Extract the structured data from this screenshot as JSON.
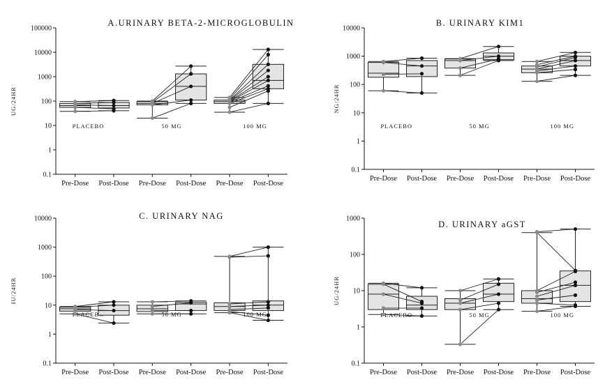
{
  "chart_data": [
    {
      "type": "box",
      "panel": "A",
      "title": "A.URINARY BETA-2-MICROGLOBULIN",
      "ylabel": "UG/24HR",
      "yscale": "log",
      "ylim": [
        0.1,
        100000
      ],
      "yticks": [
        "0.1",
        "1",
        "10",
        "100",
        "1000",
        "10000",
        "100000"
      ],
      "categories": [
        "Pre-Dose",
        "Post-Dose",
        "Pre-Dose",
        "Post-Dose",
        "Pre-Dose",
        "Post-Dose"
      ],
      "groups": [
        "PLACEBO",
        "50 MG",
        "100 MG"
      ],
      "boxes": [
        {
          "min": 38,
          "q1": 55,
          "median": 65,
          "q3": 80,
          "max": 95
        },
        {
          "min": 40,
          "q1": 52,
          "median": 65,
          "q3": 88,
          "max": 105
        },
        {
          "min": 20,
          "q1": 70,
          "median": 80,
          "q3": 95,
          "max": 100
        },
        {
          "min": 80,
          "q1": 110,
          "median": 400,
          "q3": 1300,
          "max": 2700
        },
        {
          "min": 35,
          "q1": 80,
          "median": 95,
          "q3": 110,
          "max": 140
        },
        {
          "min": 80,
          "q1": 320,
          "median": 700,
          "q3": 3200,
          "max": 13000
        }
      ],
      "pairs": [
        [
          [
            38,
            40
          ],
          [
            55,
            48
          ],
          [
            70,
            65
          ],
          [
            80,
            88
          ],
          [
            95,
            105
          ]
        ],
        [
          [
            20,
            80
          ],
          [
            70,
            110
          ],
          [
            80,
            400
          ],
          [
            90,
            1300
          ],
          [
            100,
            2700
          ]
        ],
        [
          [
            35,
            80
          ],
          [
            55,
            260
          ],
          [
            80,
            320
          ],
          [
            90,
            420
          ],
          [
            95,
            700
          ],
          [
            100,
            1000
          ],
          [
            105,
            1800
          ],
          [
            110,
            3200
          ],
          [
            120,
            8000
          ],
          [
            140,
            13000
          ]
        ]
      ]
    },
    {
      "type": "box",
      "panel": "B",
      "title": "B. URINARY KIM1",
      "ylabel": "NG/24HR",
      "yscale": "log",
      "ylim": [
        0.1,
        10000
      ],
      "yticks": [
        "0.1",
        "1",
        "10",
        "100",
        "1000",
        "10000"
      ],
      "categories": [
        "Pre-Dose",
        "Post-Dose",
        "Pre-Dose",
        "Post-Dose",
        "Pre-Dose",
        "Post-Dose"
      ],
      "groups": [
        "PLACEBO",
        "50 MG",
        "100 MG"
      ],
      "boxes": [
        {
          "min": 60,
          "q1": 180,
          "median": 250,
          "q3": 600,
          "max": 650
        },
        {
          "min": 50,
          "q1": 190,
          "median": 450,
          "q3": 700,
          "max": 850
        },
        {
          "min": 210,
          "q1": 380,
          "median": 700,
          "q3": 800,
          "max": 820
        },
        {
          "min": 700,
          "q1": 750,
          "median": 1000,
          "q3": 1300,
          "max": 2200
        },
        {
          "min": 130,
          "q1": 260,
          "median": 350,
          "q3": 450,
          "max": 650
        },
        {
          "min": 210,
          "q1": 450,
          "median": 700,
          "q3": 1000,
          "max": 1350
        }
      ],
      "pairs": [
        [
          [
            60,
            50
          ],
          [
            230,
            240
          ],
          [
            600,
            450
          ],
          [
            650,
            850
          ]
        ],
        [
          [
            210,
            700
          ],
          [
            380,
            800
          ],
          [
            700,
            1000
          ],
          [
            820,
            2200
          ]
        ],
        [
          [
            130,
            210
          ],
          [
            260,
            340
          ],
          [
            300,
            450
          ],
          [
            350,
            700
          ],
          [
            420,
            900
          ],
          [
            500,
            1000
          ],
          [
            650,
            1350
          ]
        ]
      ]
    },
    {
      "type": "box",
      "panel": "C",
      "title": "C. URINARY NAG",
      "ylabel": "IU/24HR",
      "yscale": "log",
      "ylim": [
        0.1,
        10000
      ],
      "yticks": [
        "0.1",
        "1",
        "10",
        "100",
        "1000",
        "10000"
      ],
      "categories": [
        "Pre-Dose",
        "Post-Dose",
        "Pre-Dose",
        "Post-Dose",
        "Pre-Dose",
        "Post-Dose"
      ],
      "groups": [
        "PLACEBO",
        "50 MG",
        "100 MG"
      ],
      "boxes": [
        {
          "min": 5,
          "q1": 6.2,
          "median": 7.5,
          "q3": 8.5,
          "max": 9
        },
        {
          "min": 2.4,
          "q1": 4.5,
          "median": 6.5,
          "q3": 10,
          "max": 13
        },
        {
          "min": 5,
          "q1": 6,
          "median": 7.5,
          "q3": 10,
          "max": 13
        },
        {
          "min": 5,
          "q1": 6.5,
          "median": 11,
          "q3": 12.5,
          "max": 14
        },
        {
          "min": 5.5,
          "q1": 6.5,
          "median": 9,
          "q3": 12,
          "max": 480
        },
        {
          "min": 3,
          "q1": 6.5,
          "median": 10,
          "q3": 14,
          "max": 1000
        }
      ],
      "pairs": [
        [
          [
            5,
            2.4
          ],
          [
            7,
            6.5
          ],
          [
            8.5,
            10
          ],
          [
            9,
            13
          ]
        ],
        [
          [
            5,
            5
          ],
          [
            6.5,
            6.5
          ],
          [
            9,
            12
          ],
          [
            13,
            14
          ]
        ],
        [
          [
            5.5,
            3
          ],
          [
            6,
            4.5
          ],
          [
            7,
            8
          ],
          [
            9,
            10
          ],
          [
            11,
            13
          ],
          [
            450,
            500
          ],
          [
            480,
            1000
          ]
        ]
      ]
    },
    {
      "type": "box",
      "panel": "D",
      "title": "D. URINARY aGST",
      "ylabel": "UG/24HR",
      "yscale": "log",
      "ylim": [
        0.1,
        1000
      ],
      "yticks": [
        "0.1",
        "1",
        "10",
        "100",
        "1000"
      ],
      "categories": [
        "Pre-Dose",
        "Post-Dose",
        "Pre-Dose",
        "Post-Dose",
        "Pre-Dose",
        "Post-Dose"
      ],
      "groups": [
        "PLACEBO",
        "50 MG",
        "100 MG"
      ],
      "boxes": [
        {
          "min": 2.2,
          "q1": 3,
          "median": 8,
          "q3": 15,
          "max": 16
        },
        {
          "min": 2,
          "q1": 3,
          "median": 4,
          "q3": 7,
          "max": 12
        },
        {
          "min": 0.33,
          "q1": 3,
          "median": 4.5,
          "q3": 6,
          "max": 10
        },
        {
          "min": 3,
          "q1": 5,
          "median": 8,
          "q3": 16,
          "max": 21
        },
        {
          "min": 2.7,
          "q1": 4.5,
          "median": 6,
          "q3": 10,
          "max": 400
        },
        {
          "min": 3.7,
          "q1": 5,
          "median": 14,
          "q3": 35,
          "max": 500
        }
      ],
      "pairs": [
        [
          [
            2.2,
            2
          ],
          [
            3.3,
            3.3
          ],
          [
            8,
            4.5
          ],
          [
            15,
            5
          ],
          [
            16,
            12
          ]
        ],
        [
          [
            0.33,
            3
          ],
          [
            3,
            4.5
          ],
          [
            4.5,
            8
          ],
          [
            5.5,
            15
          ],
          [
            10,
            21
          ]
        ],
        [
          [
            2.7,
            3.7
          ],
          [
            4.5,
            4
          ],
          [
            5.5,
            7.5
          ],
          [
            7,
            14
          ],
          [
            9,
            17
          ],
          [
            10,
            34
          ],
          [
            400,
            36
          ],
          [
            420,
            500
          ]
        ]
      ]
    }
  ],
  "colors": {
    "box_fill": "#e4e4e4",
    "pre_point": "#8a8a8a",
    "post_point": "#111111",
    "line": "#222222"
  }
}
